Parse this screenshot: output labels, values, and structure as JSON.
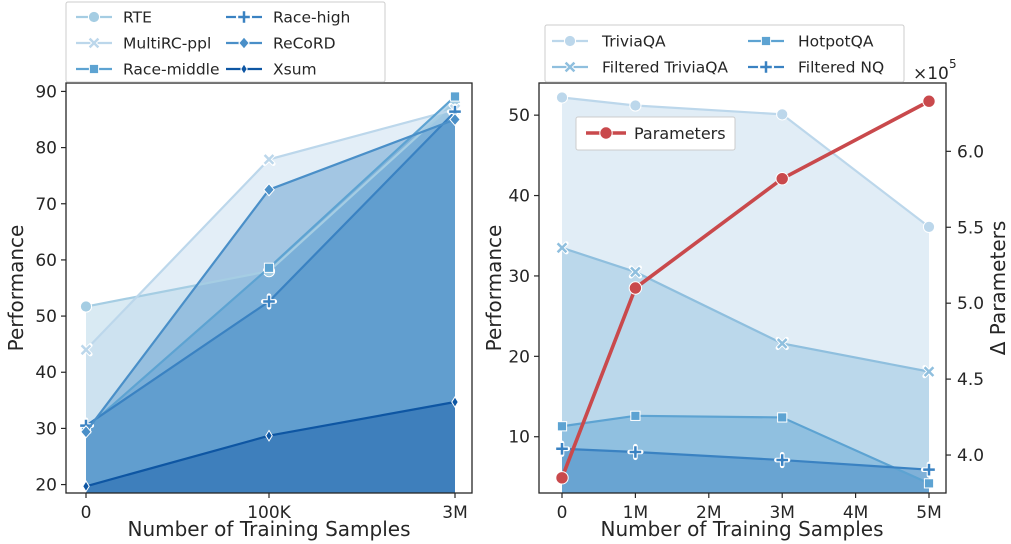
{
  "chart_data": [
    {
      "type": "area",
      "xlabel": "Number of Training Samples",
      "ylabel": "Performance",
      "categories": [
        "0",
        "100K",
        "3M"
      ],
      "ylim": [
        18.5,
        91.5
      ],
      "yticks": [
        20,
        30,
        40,
        50,
        60,
        70,
        80,
        90
      ],
      "grid": false,
      "legend_position": "top (above plot)",
      "series": [
        {
          "name": "RTE",
          "values": [
            51.7,
            58.0,
            88.1
          ],
          "color": "#a5cde3",
          "marker": "circle"
        },
        {
          "name": "MultiRC-ppl",
          "values": [
            44.0,
            77.9,
            86.8
          ],
          "color": "#bcd7eb",
          "marker": "x"
        },
        {
          "name": "Race-middle",
          "values": [
            30.0,
            58.6,
            89.1
          ],
          "color": "#5da3d2",
          "marker": "square"
        },
        {
          "name": "Race-high",
          "values": [
            30.5,
            52.6,
            86.4
          ],
          "color": "#3a82c2",
          "marker": "plus"
        },
        {
          "name": "ReCoRD",
          "values": [
            29.4,
            72.5,
            85.0
          ],
          "color": "#4a8fc8",
          "marker": "diamond"
        },
        {
          "name": "Xsum",
          "values": [
            19.7,
            28.7,
            34.7
          ],
          "color": "#0e56a3",
          "marker": "thin_diamond"
        }
      ]
    },
    {
      "type": "area",
      "xlabel": "Number of Training Samples",
      "ylabel": "Performance",
      "y2label": "Δ Parameters",
      "y2_exponent": "×10",
      "y2_exponent_power": "5",
      "categories": [
        "0",
        "1M",
        "2M",
        "3M",
        "4M",
        "5M"
      ],
      "x": [
        0,
        1,
        2,
        3,
        4,
        5
      ],
      "ylim": [
        3,
        54
      ],
      "yticks": [
        10,
        20,
        30,
        40,
        50
      ],
      "y2lim": [
        3.75,
        6.45
      ],
      "y2ticks": [
        4.0,
        4.5,
        5.0,
        5.5,
        6.0
      ],
      "y2ticklabels": [
        "4.0",
        "4.5",
        "5.0",
        "5.5",
        "6.0"
      ],
      "grid": false,
      "legend_position": "top (above plot)",
      "series": [
        {
          "name": "TriviaQA",
          "x": [
            0,
            1,
            3,
            5
          ],
          "values": [
            52.2,
            51.2,
            50.1,
            36.1
          ],
          "color": "#bcd7eb",
          "marker": "circle"
        },
        {
          "name": "Filtered TriviaQA",
          "x": [
            0,
            1,
            3,
            5
          ],
          "values": [
            33.5,
            30.5,
            21.6,
            18.1
          ],
          "color": "#8fbfde",
          "marker": "x"
        },
        {
          "name": "HotpotQA",
          "x": [
            0,
            1,
            3,
            5
          ],
          "values": [
            11.3,
            12.6,
            12.4,
            4.2
          ],
          "color": "#5da3d2",
          "marker": "square"
        },
        {
          "name": "Filtered NQ",
          "x": [
            0,
            1,
            3,
            5
          ],
          "values": [
            8.5,
            8.1,
            7.1,
            5.9
          ],
          "color": "#3a82c2",
          "marker": "plus"
        }
      ],
      "secondary_series": {
        "name": "Parameters",
        "x": [
          0,
          1,
          3,
          5
        ],
        "values": [
          3.85,
          5.1,
          5.82,
          6.33
        ],
        "color": "#c9494c",
        "legend_position": "upper left (inside plot)"
      }
    }
  ]
}
